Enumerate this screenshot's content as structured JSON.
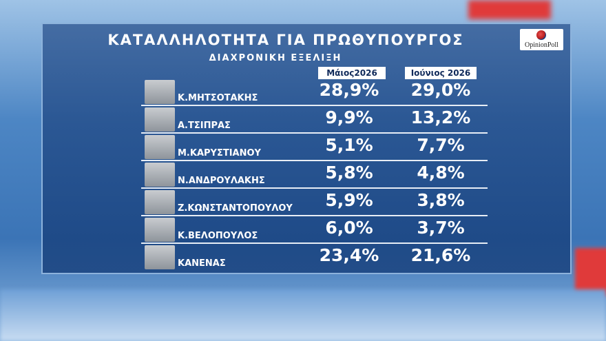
{
  "header": {
    "title": "ΚΑΤΑΛΛΗΛΟΤΗΤΑ ΓΙΑ ΠΡΩΘΥΠΟΥΡΓΟΣ",
    "subtitle": "ΔΙΑΧΡΟΝΙΚΗ ΕΞΕΛΙΞΗ",
    "logo": "OpinionPoll"
  },
  "table": {
    "columns": [
      "Μάιος2026",
      "Ιούνιος 2026"
    ],
    "rows": [
      [
        "Κ.ΜΗΤΣΟΤΑΚΗΣ",
        "28,9%",
        "29,0%"
      ],
      [
        "Α.ΤΣΙΠΡΑΣ",
        "9,9%",
        "13,2%"
      ],
      [
        "Μ.ΚΑΡΥΣΤΙΑΝΟΥ",
        "5,1%",
        "7,7%"
      ],
      [
        "Ν.ΑΝΔΡΟΥΛΑΚΗΣ",
        "5,8%",
        "4,8%"
      ],
      [
        "Ζ.ΚΩΝΣΤΑΝΤΟΠΟΥΛΟΥ",
        "5,9%",
        "3,8%"
      ],
      [
        "Κ.ΒΕΛΟΠΟΥΛΟΣ",
        "6,0%",
        "3,7%"
      ],
      [
        "ΚΑΝΕΝΑΣ",
        "23,4%",
        "21,6%"
      ]
    ]
  }
}
